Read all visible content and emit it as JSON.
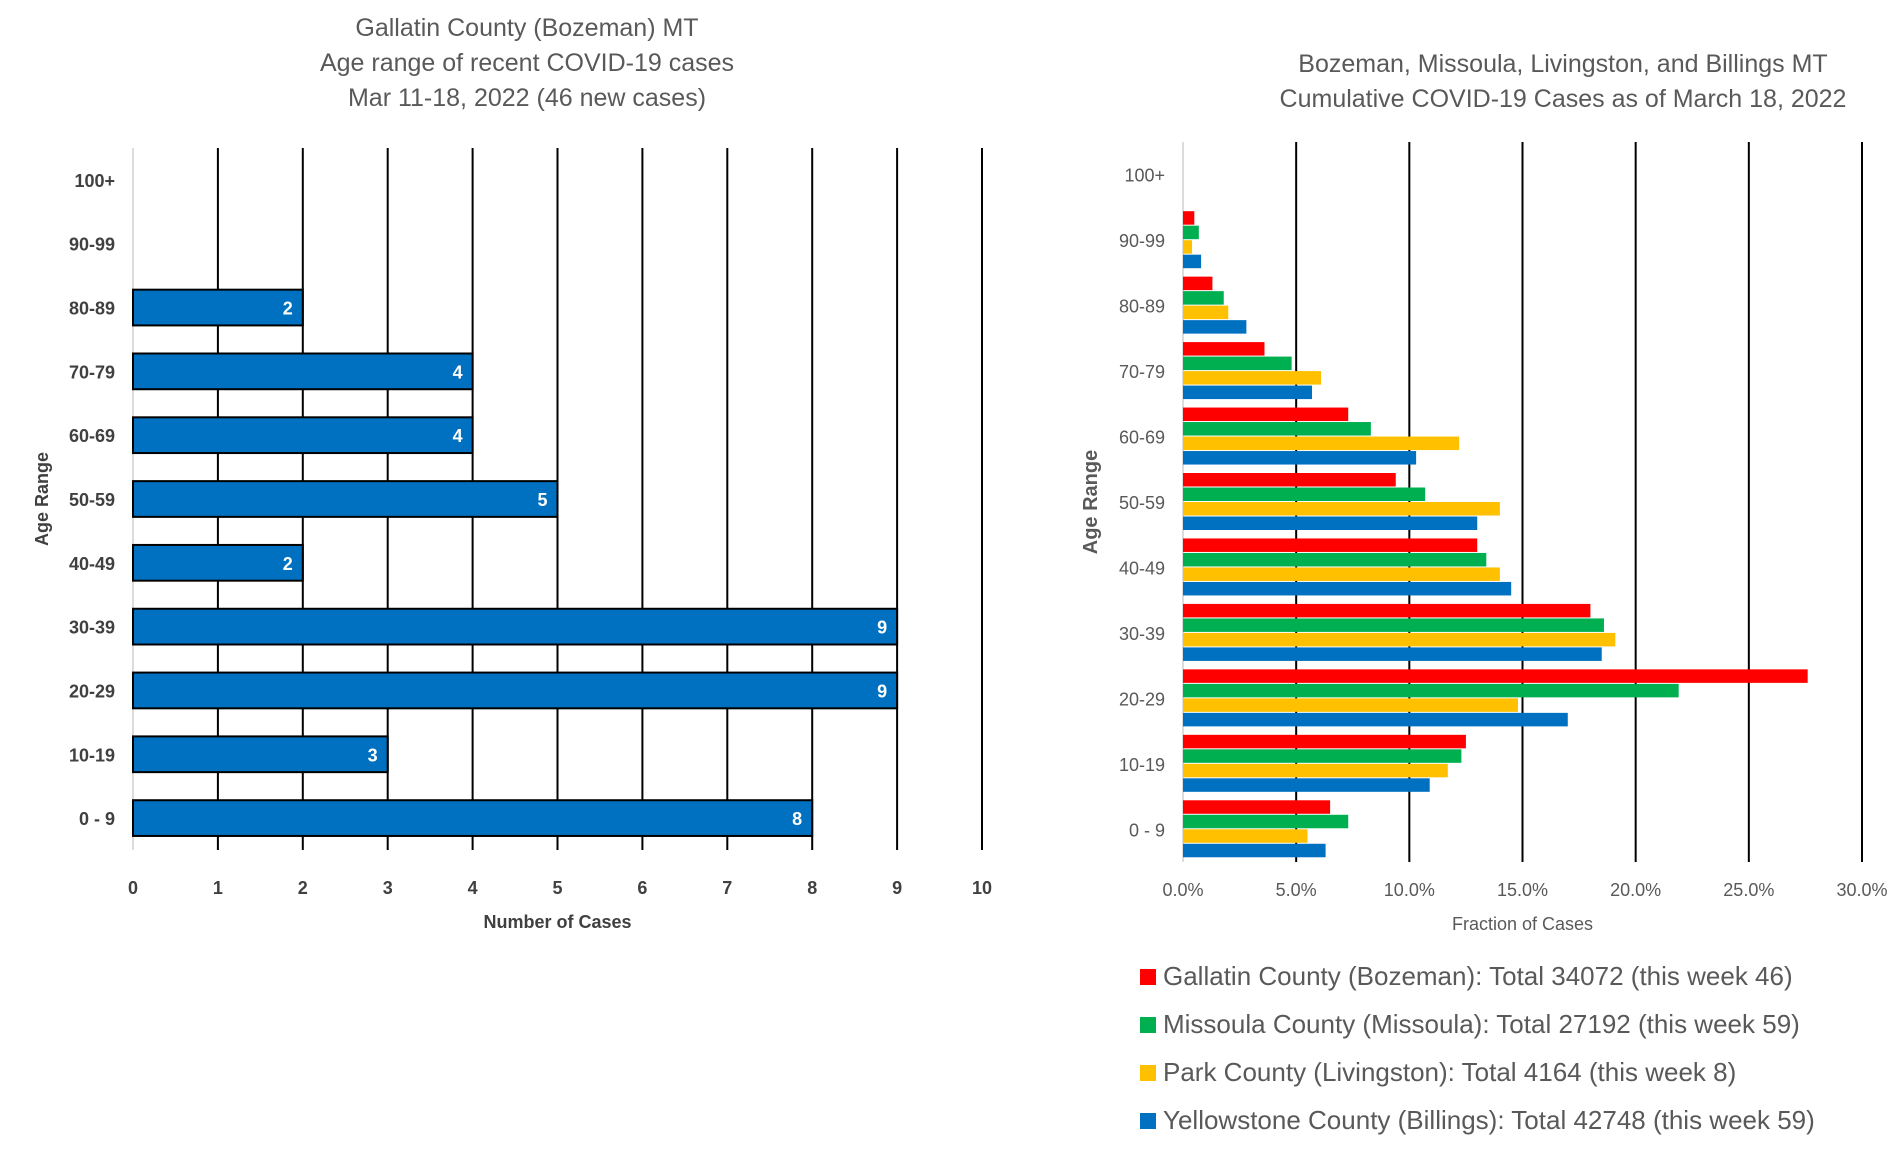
{
  "chart_data": [
    {
      "type": "bar",
      "orientation": "horizontal",
      "title_lines": [
        "Gallatin County (Bozeman) MT",
        "Age range of recent COVID-19 cases",
        "Mar 11-18, 2022 (46 new cases)"
      ],
      "xlabel": "Number of Cases",
      "ylabel": "Age Range",
      "xlim": [
        0,
        10
      ],
      "xticks": [
        "0",
        "1",
        "2",
        "3",
        "4",
        "5",
        "6",
        "7",
        "8",
        "9",
        "10"
      ],
      "grid": "vertical",
      "categories": [
        "100+",
        "90-99",
        "80-89",
        "70-79",
        "60-69",
        "50-59",
        "40-49",
        "30-39",
        "20-29",
        "10-19",
        "0 - 9"
      ],
      "values": [
        0,
        0,
        2,
        4,
        4,
        5,
        2,
        9,
        9,
        3,
        8
      ],
      "data_labels": [
        "",
        "",
        "2",
        "4",
        "4",
        "5",
        "2",
        "9",
        "9",
        "3",
        "8"
      ],
      "color": "#0070C0"
    },
    {
      "type": "bar",
      "orientation": "horizontal",
      "title_lines": [
        "Bozeman, Missoula, Livingston, and Billings MT",
        "Cumulative COVID-19 Cases as of March 18, 2022"
      ],
      "xlabel": "Fraction of Cases",
      "ylabel": "Age Range",
      "xlim": [
        0,
        30
      ],
      "xticks": [
        "0.0%",
        "5.0%",
        "10.0%",
        "15.0%",
        "20.0%",
        "25.0%",
        "30.0%"
      ],
      "grid": "vertical",
      "legend_position": "bottom",
      "categories": [
        "100+",
        "90-99",
        "80-89",
        "70-79",
        "60-69",
        "50-59",
        "40-49",
        "30-39",
        "20-29",
        "10-19",
        "0 - 9"
      ],
      "series": [
        {
          "name": "Gallatin County (Bozeman): Total 34072 (this week 46)",
          "color": "#FF0000",
          "values": [
            0.0,
            0.5,
            1.3,
            3.6,
            7.3,
            9.4,
            13.0,
            18.0,
            27.6,
            12.5,
            6.5
          ]
        },
        {
          "name": "Missoula County (Missoula): Total 27192 (this week 59)",
          "color": "#00B050",
          "values": [
            0.0,
            0.7,
            1.8,
            4.8,
            8.3,
            10.7,
            13.4,
            18.6,
            21.9,
            12.3,
            7.3
          ]
        },
        {
          "name": "Park County (Livingston): Total 4164 (this week 8)",
          "color": "#FFC000",
          "values": [
            0.0,
            0.4,
            2.0,
            6.1,
            12.2,
            14.0,
            14.0,
            19.1,
            14.8,
            11.7,
            5.5
          ]
        },
        {
          "name": "Yellowstone County (Billings): Total 42748 (this week 59)",
          "color": "#0070C0",
          "values": [
            0.0,
            0.8,
            2.8,
            5.7,
            10.3,
            13.0,
            14.5,
            18.5,
            17.0,
            10.9,
            6.3
          ]
        }
      ]
    }
  ]
}
